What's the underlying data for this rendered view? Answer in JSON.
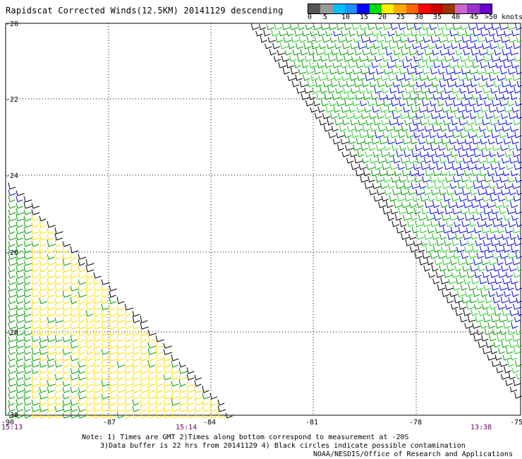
{
  "title": "Rapidscat Corrected Winds(12.5KM) 20141129 descending",
  "scale": {
    "colors": [
      "#555555",
      "#999999",
      "#00bfff",
      "#1e90ff",
      "#0000ff",
      "#00dd00",
      "#ffee00",
      "#ffaa00",
      "#ff6600",
      "#ff0000",
      "#cc0000",
      "#993300",
      "#cc66cc",
      "#9933cc",
      "#6600cc"
    ],
    "labels": [
      "0",
      "5",
      "10",
      "15",
      "20",
      "25",
      "30",
      "35",
      "40",
      "45",
      ">50 knots"
    ]
  },
  "axes": {
    "lat_labels": [
      "-20",
      "-22",
      "-24",
      "-26",
      "-28",
      "-30"
    ],
    "lon_labels": [
      "-90",
      "-87",
      "-84",
      "-81",
      "-78",
      "-75"
    ],
    "time_labels": [
      "15:13",
      "15:14",
      "13:38"
    ]
  },
  "wind_colors": {
    "edge": "#000000",
    "low": "#009900",
    "mid": "#22cc22",
    "high": "#0000dd",
    "light": "#ffdd00"
  },
  "notes": {
    "line1": "Note: 1) Times are GMT 2)Times along bottom correspond to measurement at -20S",
    "line2": "3)Data buffer is 22 hrs from 20141129 4) Black circles indicate possible contamination",
    "credit": "NOAA/NESDIS/Office of Research and Applications"
  }
}
